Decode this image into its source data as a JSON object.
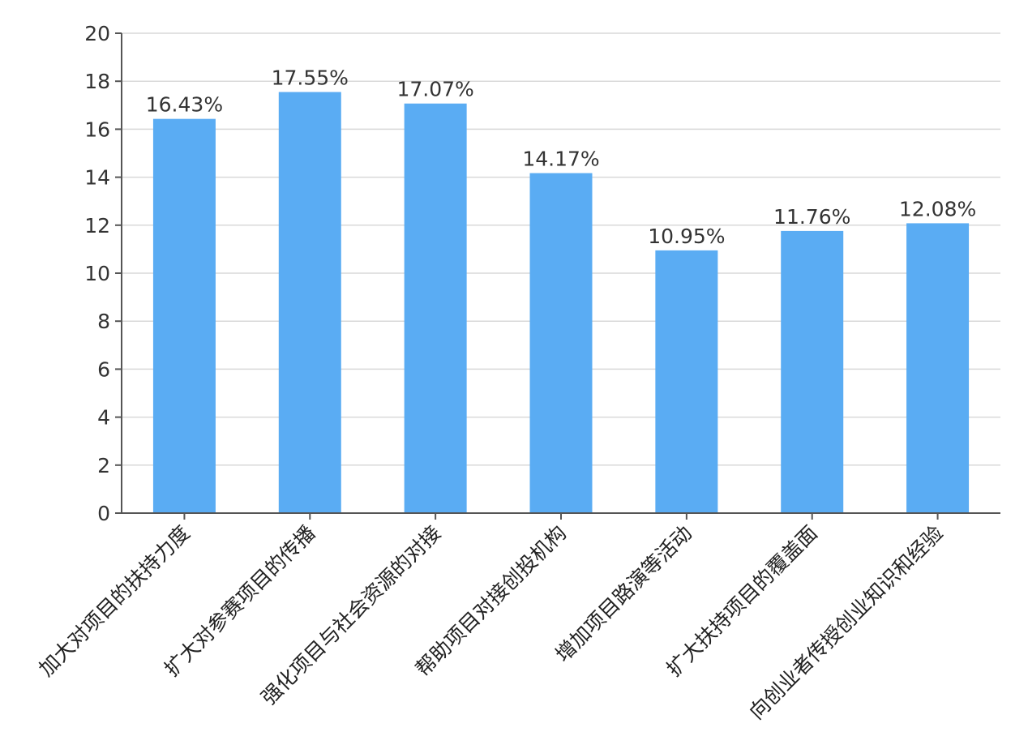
{
  "chart_data": {
    "type": "bar",
    "categories": [
      "加大对项目的扶持力度",
      "扩大对参赛项目的传播",
      "强化项目与社会资源的对接",
      "帮助项目对接创投机构",
      "增加项目路演等活动",
      "扩大扶持项目的覆盖面",
      "向创业者传授创业知识和经验"
    ],
    "values": [
      16.43,
      17.55,
      17.07,
      14.17,
      10.95,
      11.76,
      12.08
    ],
    "data_labels": [
      "16.43%",
      "17.55%",
      "17.07%",
      "14.17%",
      "10.95%",
      "11.76%",
      "12.08%"
    ],
    "yticks": [
      "0",
      "2",
      "4",
      "6",
      "8",
      "10",
      "12",
      "14",
      "16",
      "18",
      "20"
    ],
    "ylim": [
      0,
      20
    ],
    "grid": "horizontal",
    "legend": "none",
    "bar_color": "#5aacf3"
  }
}
